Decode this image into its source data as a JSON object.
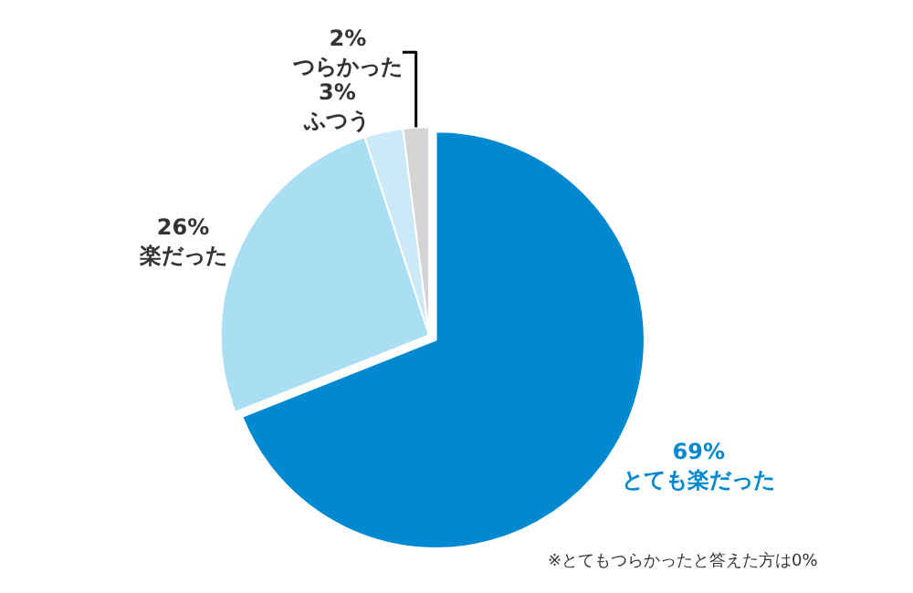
{
  "chart_data": {
    "type": "pie",
    "categories": [
      "とても楽だった",
      "楽だった",
      "ふつう",
      "つらかった"
    ],
    "values": [
      69,
      26,
      3,
      2
    ],
    "value_labels": [
      "69%",
      "26%",
      "3%",
      "2%"
    ],
    "colors": [
      "#0088d0",
      "#a9def3",
      "#cbe9f6",
      "#d4d4d4"
    ],
    "annotations": [
      "※とてもつらかったと答えた方は0%"
    ],
    "legend": false
  }
}
